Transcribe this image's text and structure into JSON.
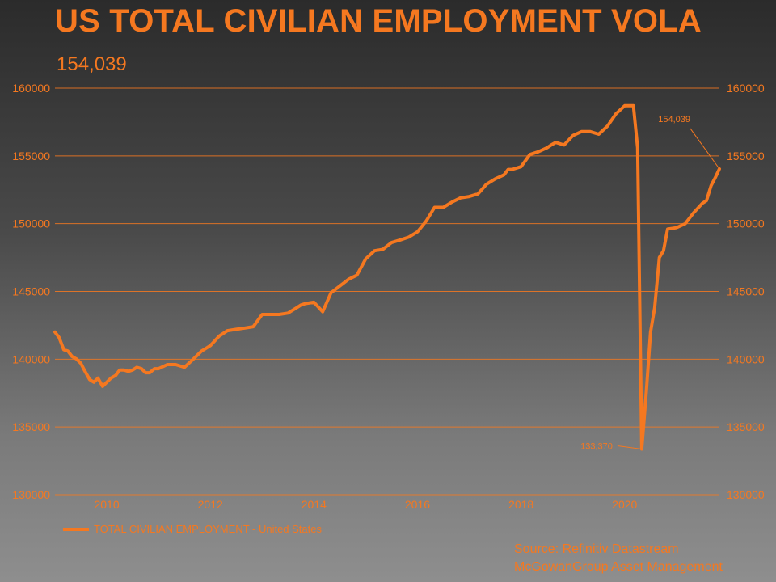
{
  "title": "US TOTAL CIVILIAN EMPLOYMENT VOLA",
  "subtitle": "154,039",
  "colors": {
    "accent": "#f57820",
    "grid": "#f57820"
  },
  "legend": {
    "label": "TOTAL CIVILIAN EMPLOYMENT - United States"
  },
  "source": {
    "line1": "Source: Refinitiv Datastream",
    "line2": "McGowanGroup Asset Management"
  },
  "chart_data": {
    "type": "line",
    "title": "US TOTAL CIVILIAN EMPLOYMENT VOLA",
    "ylim": [
      130000,
      160000
    ],
    "yticks": [
      130000,
      135000,
      140000,
      145000,
      150000,
      155000,
      160000
    ],
    "ytick_labels": [
      "130000",
      "135000",
      "140000",
      "145000",
      "150000",
      "155000",
      "160000"
    ],
    "xlim": [
      2009.0,
      2021.83
    ],
    "xticks": [
      2010,
      2012,
      2014,
      2016,
      2018,
      2020
    ],
    "xtick_labels": [
      "2010",
      "2012",
      "2014",
      "2016",
      "2018",
      "2020"
    ],
    "grid": "horizontal",
    "dual_y_axis": true,
    "legend_position": "bottom-left",
    "series": [
      {
        "name": "TOTAL CIVILIAN EMPLOYMENT - United States",
        "x": [
          2009.0,
          2009.08,
          2009.17,
          2009.25,
          2009.33,
          2009.42,
          2009.5,
          2009.58,
          2009.67,
          2009.75,
          2009.83,
          2009.92,
          2010.0,
          2010.08,
          2010.17,
          2010.25,
          2010.33,
          2010.42,
          2010.5,
          2010.58,
          2010.67,
          2010.75,
          2010.83,
          2010.92,
          2011.0,
          2011.17,
          2011.33,
          2011.5,
          2011.67,
          2011.83,
          2012.0,
          2012.17,
          2012.33,
          2012.5,
          2012.67,
          2012.83,
          2013.0,
          2013.17,
          2013.33,
          2013.5,
          2013.67,
          2013.75,
          2013.83,
          2014.0,
          2014.17,
          2014.33,
          2014.5,
          2014.67,
          2014.83,
          2015.0,
          2015.17,
          2015.33,
          2015.5,
          2015.67,
          2015.83,
          2016.0,
          2016.17,
          2016.33,
          2016.5,
          2016.67,
          2016.83,
          2017.0,
          2017.17,
          2017.33,
          2017.5,
          2017.67,
          2017.75,
          2017.83,
          2018.0,
          2018.17,
          2018.33,
          2018.5,
          2018.58,
          2018.67,
          2018.83,
          2019.0,
          2019.17,
          2019.33,
          2019.5,
          2019.67,
          2019.83,
          2020.0,
          2020.08,
          2020.17,
          2020.25,
          2020.33,
          2020.42,
          2020.5,
          2020.58,
          2020.67,
          2020.75,
          2020.83,
          2021.0,
          2021.17,
          2021.33,
          2021.5,
          2021.58,
          2021.67,
          2021.75,
          2021.83
        ],
        "values": [
          142000,
          141600,
          140700,
          140600,
          140200,
          140000,
          139700,
          139100,
          138500,
          138300,
          138600,
          138000,
          138300,
          138600,
          138800,
          139200,
          139200,
          139100,
          139200,
          139400,
          139300,
          139000,
          139000,
          139300,
          139300,
          139600,
          139600,
          139400,
          140000,
          140600,
          141000,
          141700,
          142100,
          142200,
          142300,
          142400,
          143300,
          143300,
          143300,
          143400,
          143800,
          144000,
          144100,
          144200,
          143500,
          144900,
          145400,
          145900,
          146200,
          147400,
          148000,
          148100,
          148600,
          148800,
          149000,
          149400,
          150200,
          151200,
          151200,
          151600,
          151900,
          152000,
          152200,
          152900,
          153300,
          153600,
          154000,
          154000,
          154200,
          155100,
          155300,
          155600,
          155800,
          156000,
          155800,
          156500,
          156800,
          156800,
          156600,
          157200,
          158100,
          158700,
          158700,
          158700,
          155600,
          133370,
          137700,
          142000,
          143800,
          147500,
          148000,
          149600,
          149700,
          150000,
          150800,
          151500,
          151700,
          152800,
          153400,
          154039
        ]
      }
    ],
    "annotations": [
      {
        "label": "154,039",
        "x": 2021.83,
        "y": 154039
      },
      {
        "label": "133,370",
        "x": 2020.33,
        "y": 133370
      }
    ]
  }
}
